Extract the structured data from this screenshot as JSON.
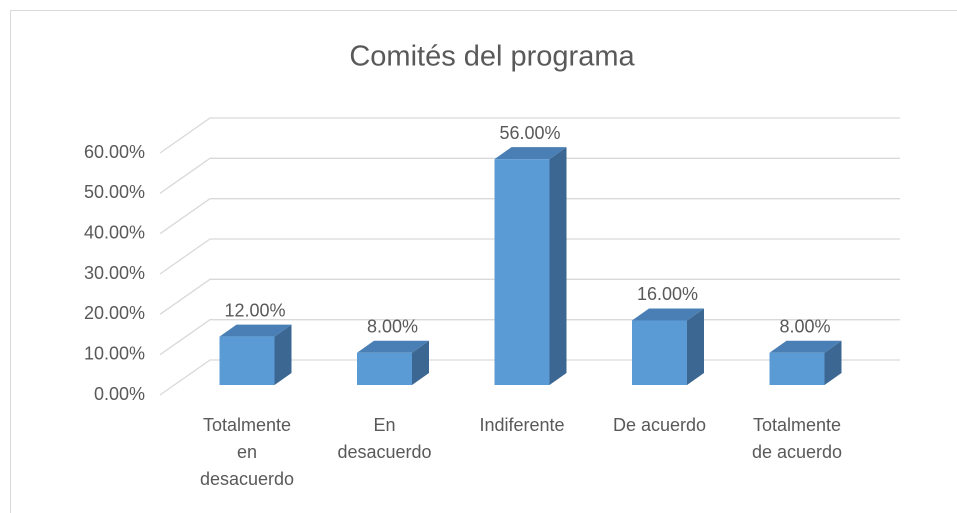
{
  "chart_data": {
    "type": "bar3d",
    "title": "Comités del programa",
    "categories": [
      "Totalmente\nen\ndesacuerdo",
      "En\ndesacuerdo",
      "Indiferente",
      "De acuerdo",
      "Totalmente\nde acuerdo"
    ],
    "values": [
      12,
      8,
      56,
      16,
      8
    ],
    "value_labels": [
      "12.00%",
      "8.00%",
      "56.00%",
      "16.00%",
      "8.00%"
    ],
    "color": "#5b9bd5",
    "ylim": [
      0,
      60
    ],
    "yticks": [
      {
        "value": 0,
        "label": "0.00%"
      },
      {
        "value": 10,
        "label": "10.00%"
      },
      {
        "value": 20,
        "label": "20.00%"
      },
      {
        "value": 30,
        "label": "30.00%"
      },
      {
        "value": 40,
        "label": "40.00%"
      },
      {
        "value": 50,
        "label": "50.00%"
      },
      {
        "value": 60,
        "label": "60.00%"
      }
    ],
    "grid": true
  }
}
